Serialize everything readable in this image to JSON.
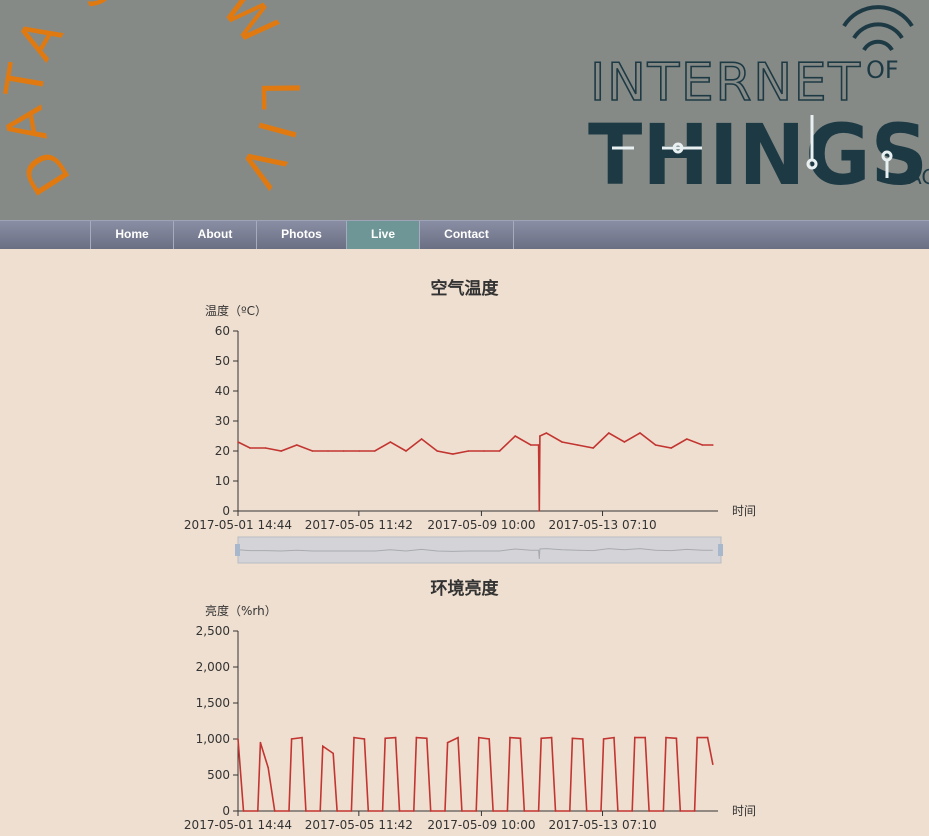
{
  "header": {
    "badge_text": "DATA SHOW LIVE",
    "logo_text": "INTERNET OF THINGS",
    "logo_line1": "INTERNET",
    "logo_line1_of": "OF",
    "logo_line2": "THINGS",
    "logo_cut": "AC",
    "badge_color": "#e07a10",
    "logo_color": "#1d3a44"
  },
  "nav": {
    "items": [
      {
        "label": "Home"
      },
      {
        "label": "About"
      },
      {
        "label": "Photos"
      },
      {
        "label": "Live",
        "active": true
      },
      {
        "label": "Contact"
      }
    ]
  },
  "chart_data": [
    {
      "type": "line",
      "title": "空气温度",
      "ylabel": "温度（ºC）",
      "xlabel": "时间",
      "ylim": [
        0,
        60
      ],
      "yticks": [
        "0",
        "10",
        "20",
        "30",
        "40",
        "50",
        "60"
      ],
      "xticks": [
        "2017-05-01 14:44",
        "2017-05-05 11:42",
        "2017-05-09 10:00",
        "2017-05-13 07:10"
      ],
      "xrange": [
        "2017-05-01 14:44",
        "2017-05-17 00:00"
      ],
      "line_color": "#c23531",
      "has_datazoom": true,
      "series": [
        {
          "x": [
            "2017-05-01 14:44",
            "2017-05-02 00:00",
            "2017-05-02 12:00",
            "2017-05-03 00:00",
            "2017-05-03 12:00",
            "2017-05-04 00:00",
            "2017-05-04 12:00",
            "2017-05-05 00:00",
            "2017-05-05 12:00",
            "2017-05-06 00:00",
            "2017-05-06 12:00",
            "2017-05-07 00:00",
            "2017-05-07 12:00",
            "2017-05-08 00:00",
            "2017-05-08 12:00",
            "2017-05-09 00:00",
            "2017-05-09 12:00",
            "2017-05-10 00:00",
            "2017-05-10 12:00",
            "2017-05-11 00:00",
            "2017-05-11 06:00",
            "2017-05-11 06:30",
            "2017-05-11 07:00",
            "2017-05-11 12:00",
            "2017-05-12 00:00",
            "2017-05-12 12:00",
            "2017-05-13 00:00",
            "2017-05-13 12:00",
            "2017-05-14 00:00",
            "2017-05-14 12:00",
            "2017-05-15 00:00",
            "2017-05-15 12:00",
            "2017-05-16 00:00",
            "2017-05-16 12:00",
            "2017-05-16 20:00"
          ],
          "y": [
            23,
            21,
            21,
            20,
            22,
            20,
            20,
            20,
            20,
            20,
            23,
            20,
            24,
            20,
            19,
            20,
            20,
            20,
            25,
            22,
            22,
            0,
            25,
            26,
            23,
            22,
            21,
            26,
            23,
            26,
            22,
            21,
            24,
            22,
            22
          ]
        }
      ]
    },
    {
      "type": "line",
      "title": "环境亮度",
      "ylabel": "亮度（%rh）",
      "xlabel": "时间",
      "ylim": [
        0,
        2500
      ],
      "yticks": [
        "0",
        "500",
        "1,000",
        "1,500",
        "2,000",
        "2,500"
      ],
      "xticks": [
        "2017-05-01 14:44",
        "2017-05-05 11:42",
        "2017-05-09 10:00",
        "2017-05-13 07:10"
      ],
      "xrange": [
        "2017-05-01 14:44",
        "2017-05-17 00:00"
      ],
      "line_color": "#c23531",
      "series": [
        {
          "x": [
            "2017-05-01 14:44",
            "2017-05-01 19:00",
            "2017-05-02 06:00",
            "2017-05-02 08:00",
            "2017-05-02 14:00",
            "2017-05-02 19:00",
            "2017-05-03 06:00",
            "2017-05-03 08:00",
            "2017-05-03 16:00",
            "2017-05-03 19:00",
            "2017-05-04 06:00",
            "2017-05-04 08:00",
            "2017-05-04 16:00",
            "2017-05-04 19:00",
            "2017-05-05 06:00",
            "2017-05-05 08:00",
            "2017-05-05 16:00",
            "2017-05-05 19:00",
            "2017-05-06 06:00",
            "2017-05-06 08:00",
            "2017-05-06 16:00",
            "2017-05-06 19:00",
            "2017-05-07 06:00",
            "2017-05-07 08:00",
            "2017-05-07 16:00",
            "2017-05-07 19:00",
            "2017-05-08 06:00",
            "2017-05-08 08:00",
            "2017-05-08 16:00",
            "2017-05-08 19:00",
            "2017-05-09 06:00",
            "2017-05-09 08:00",
            "2017-05-09 16:00",
            "2017-05-09 19:00",
            "2017-05-10 06:00",
            "2017-05-10 08:00",
            "2017-05-10 16:00",
            "2017-05-10 19:00",
            "2017-05-11 06:00",
            "2017-05-11 08:00",
            "2017-05-11 16:00",
            "2017-05-11 19:00",
            "2017-05-12 06:00",
            "2017-05-12 08:00",
            "2017-05-12 16:00",
            "2017-05-12 19:00",
            "2017-05-13 06:00",
            "2017-05-13 08:00",
            "2017-05-13 16:00",
            "2017-05-13 19:00",
            "2017-05-14 06:00",
            "2017-05-14 08:00",
            "2017-05-14 16:00",
            "2017-05-14 19:00",
            "2017-05-15 06:00",
            "2017-05-15 08:00",
            "2017-05-15 16:00",
            "2017-05-15 19:00",
            "2017-05-16 06:00",
            "2017-05-16 08:00",
            "2017-05-16 16:00",
            "2017-05-16 20:00"
          ],
          "y": [
            1000,
            0,
            0,
            950,
            600,
            0,
            0,
            1000,
            1020,
            0,
            0,
            900,
            800,
            0,
            0,
            1020,
            1000,
            0,
            0,
            1010,
            1020,
            0,
            0,
            1020,
            1010,
            0,
            0,
            950,
            1020,
            0,
            0,
            1020,
            1000,
            0,
            0,
            1020,
            1010,
            0,
            0,
            1010,
            1020,
            0,
            0,
            1010,
            1000,
            0,
            0,
            1000,
            1020,
            0,
            0,
            1020,
            1020,
            0,
            0,
            1020,
            1010,
            0,
            0,
            1020,
            1020,
            650
          ]
        }
      ]
    }
  ]
}
